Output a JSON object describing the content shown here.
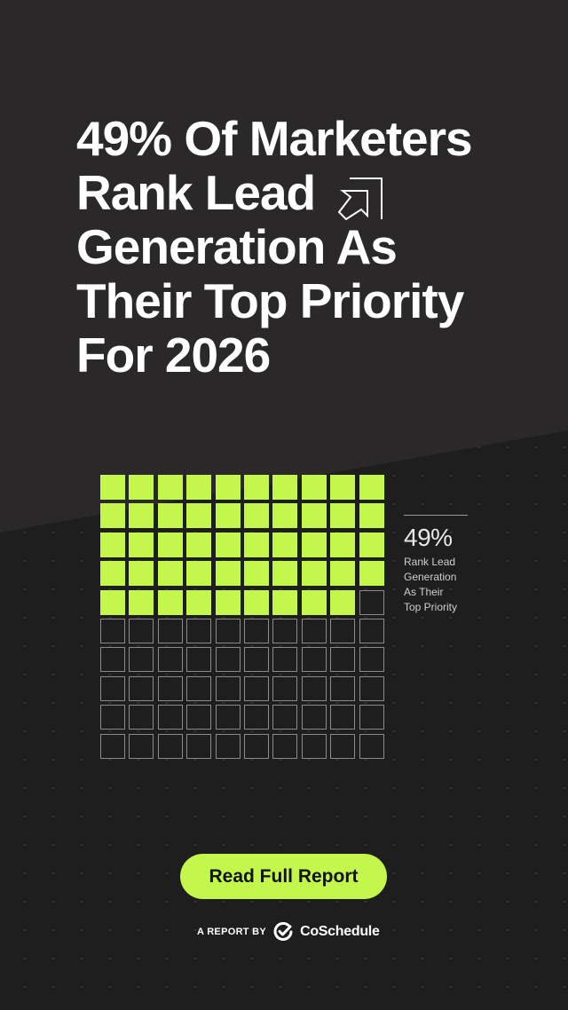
{
  "headline": {
    "lines": [
      "49% Of Marketers",
      "Rank Lead",
      "Generation As",
      "Their Top Priority",
      "For 2026"
    ]
  },
  "waffle": {
    "total_cells": 100,
    "filled_cells": 49,
    "rows": 10,
    "columns": 10
  },
  "stat": {
    "value": "49%",
    "label_lines": [
      "Rank Lead",
      "Generation",
      "As Their",
      "Top Priority"
    ]
  },
  "cta": {
    "label": "Read Full Report"
  },
  "footer": {
    "prefix": "A REPORT BY",
    "brand": "CoSchedule"
  },
  "colors": {
    "accent": "#c4f74b",
    "background_top": "#2a2828",
    "background_bottom": "#1e1e1e",
    "text": "#ffffff"
  },
  "icons": {
    "headline_arrow": "arrow-up-right-icon",
    "brand_logo": "coschedule-check-icon"
  }
}
